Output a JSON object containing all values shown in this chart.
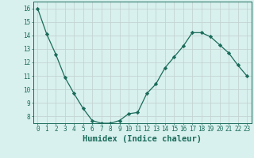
{
  "x": [
    0,
    1,
    2,
    3,
    4,
    5,
    6,
    7,
    8,
    9,
    10,
    11,
    12,
    13,
    14,
    15,
    16,
    17,
    18,
    19,
    20,
    21,
    22,
    23
  ],
  "y": [
    16.0,
    14.1,
    12.6,
    10.9,
    9.7,
    8.6,
    7.7,
    7.5,
    7.5,
    7.7,
    8.2,
    8.3,
    9.7,
    10.4,
    11.6,
    12.4,
    13.2,
    14.2,
    14.2,
    13.9,
    13.3,
    12.7,
    11.8,
    11.0
  ],
  "xlim": [
    -0.5,
    23.5
  ],
  "ylim": [
    7.5,
    16.5
  ],
  "yticks": [
    8,
    9,
    10,
    11,
    12,
    13,
    14,
    15,
    16
  ],
  "xtick_labels": [
    "0",
    "1",
    "2",
    "3",
    "4",
    "5",
    "6",
    "7",
    "8",
    "9",
    "10",
    "11",
    "12",
    "13",
    "14",
    "15",
    "16",
    "17",
    "18",
    "19",
    "20",
    "21",
    "22",
    "23"
  ],
  "xlabel": "Humidex (Indice chaleur)",
  "line_color": "#1a6b5a",
  "marker": "D",
  "marker_size": 2.2,
  "bg_color": "#d8f0ee",
  "grid_color": "#c0d0ce",
  "axis_color": "#1a6b5a",
  "tick_color": "#1a6b5a",
  "xlabel_color": "#1a6b5a",
  "tick_fontsize": 5.5,
  "xlabel_fontsize": 7.5
}
